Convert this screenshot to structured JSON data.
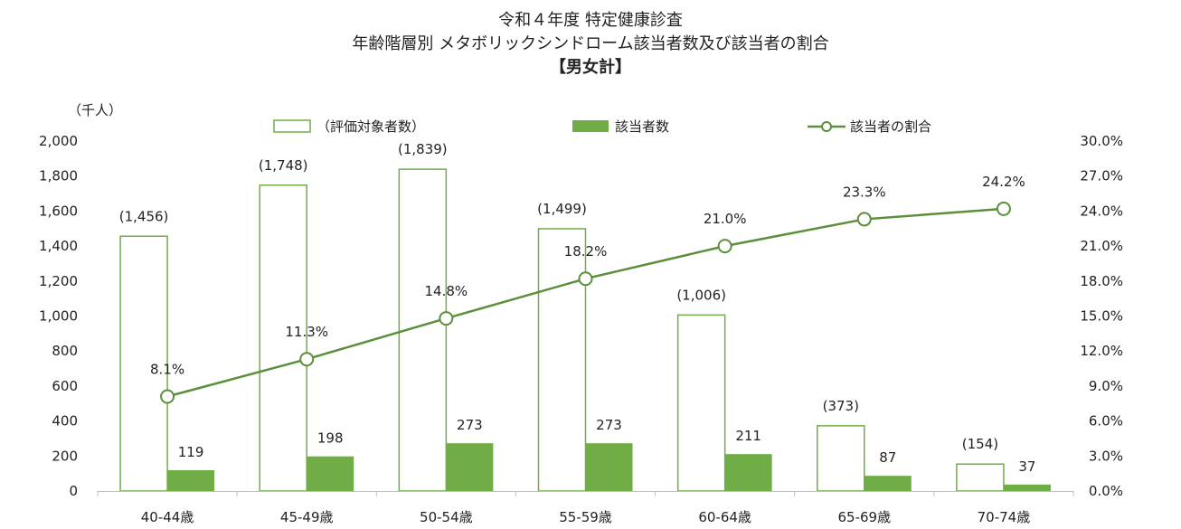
{
  "chart_data": {
    "type": "bar",
    "title": [
      "令和４年度 特定健康診査",
      "年齢階層別 メタボリックシンドローム該当者数及び該当者の割合",
      "【男女計】"
    ],
    "y_unit": "（千人）",
    "categories": [
      "40-44歳",
      "45-49歳",
      "50-54歳",
      "55-59歳",
      "60-64歳",
      "65-69歳",
      "70-74歳"
    ],
    "series": [
      {
        "name": "（評価対象者数）",
        "type": "bar",
        "style": "outline",
        "axis": "left",
        "values": [
          1456,
          1748,
          1839,
          1499,
          1006,
          373,
          154
        ],
        "labels": [
          "(1,456)",
          "(1,748)",
          "(1,839)",
          "(1,499)",
          "(1,006)",
          "(373)",
          "(154)"
        ]
      },
      {
        "name": "該当者数",
        "type": "bar",
        "style": "filled",
        "axis": "left",
        "values": [
          119,
          198,
          273,
          273,
          211,
          87,
          37
        ],
        "labels": [
          "119",
          "198",
          "273",
          "273",
          "211",
          "87",
          "37"
        ]
      },
      {
        "name": "該当者の割合",
        "type": "line",
        "axis": "right",
        "values": [
          8.1,
          11.3,
          14.8,
          18.2,
          21.0,
          23.3,
          24.2
        ],
        "labels": [
          "8.1%",
          "11.3%",
          "14.8%",
          "18.2%",
          "21.0%",
          "23.3%",
          "24.2%"
        ]
      }
    ],
    "y_left": {
      "min": 0,
      "max": 2000,
      "ticks": [
        "0",
        "200",
        "400",
        "600",
        "800",
        "1,000",
        "1,200",
        "1,400",
        "1,600",
        "1,800",
        "2,000"
      ]
    },
    "y_right": {
      "min": 0,
      "max": 30,
      "ticks": [
        "0.0%",
        "3.0%",
        "6.0%",
        "9.0%",
        "12.0%",
        "15.0%",
        "18.0%",
        "21.0%",
        "24.0%",
        "27.0%",
        "30.0%"
      ]
    },
    "legend_position": "top",
    "grid": false,
    "colors": {
      "green": "#70ad47",
      "line": "#5b8f3a"
    }
  }
}
